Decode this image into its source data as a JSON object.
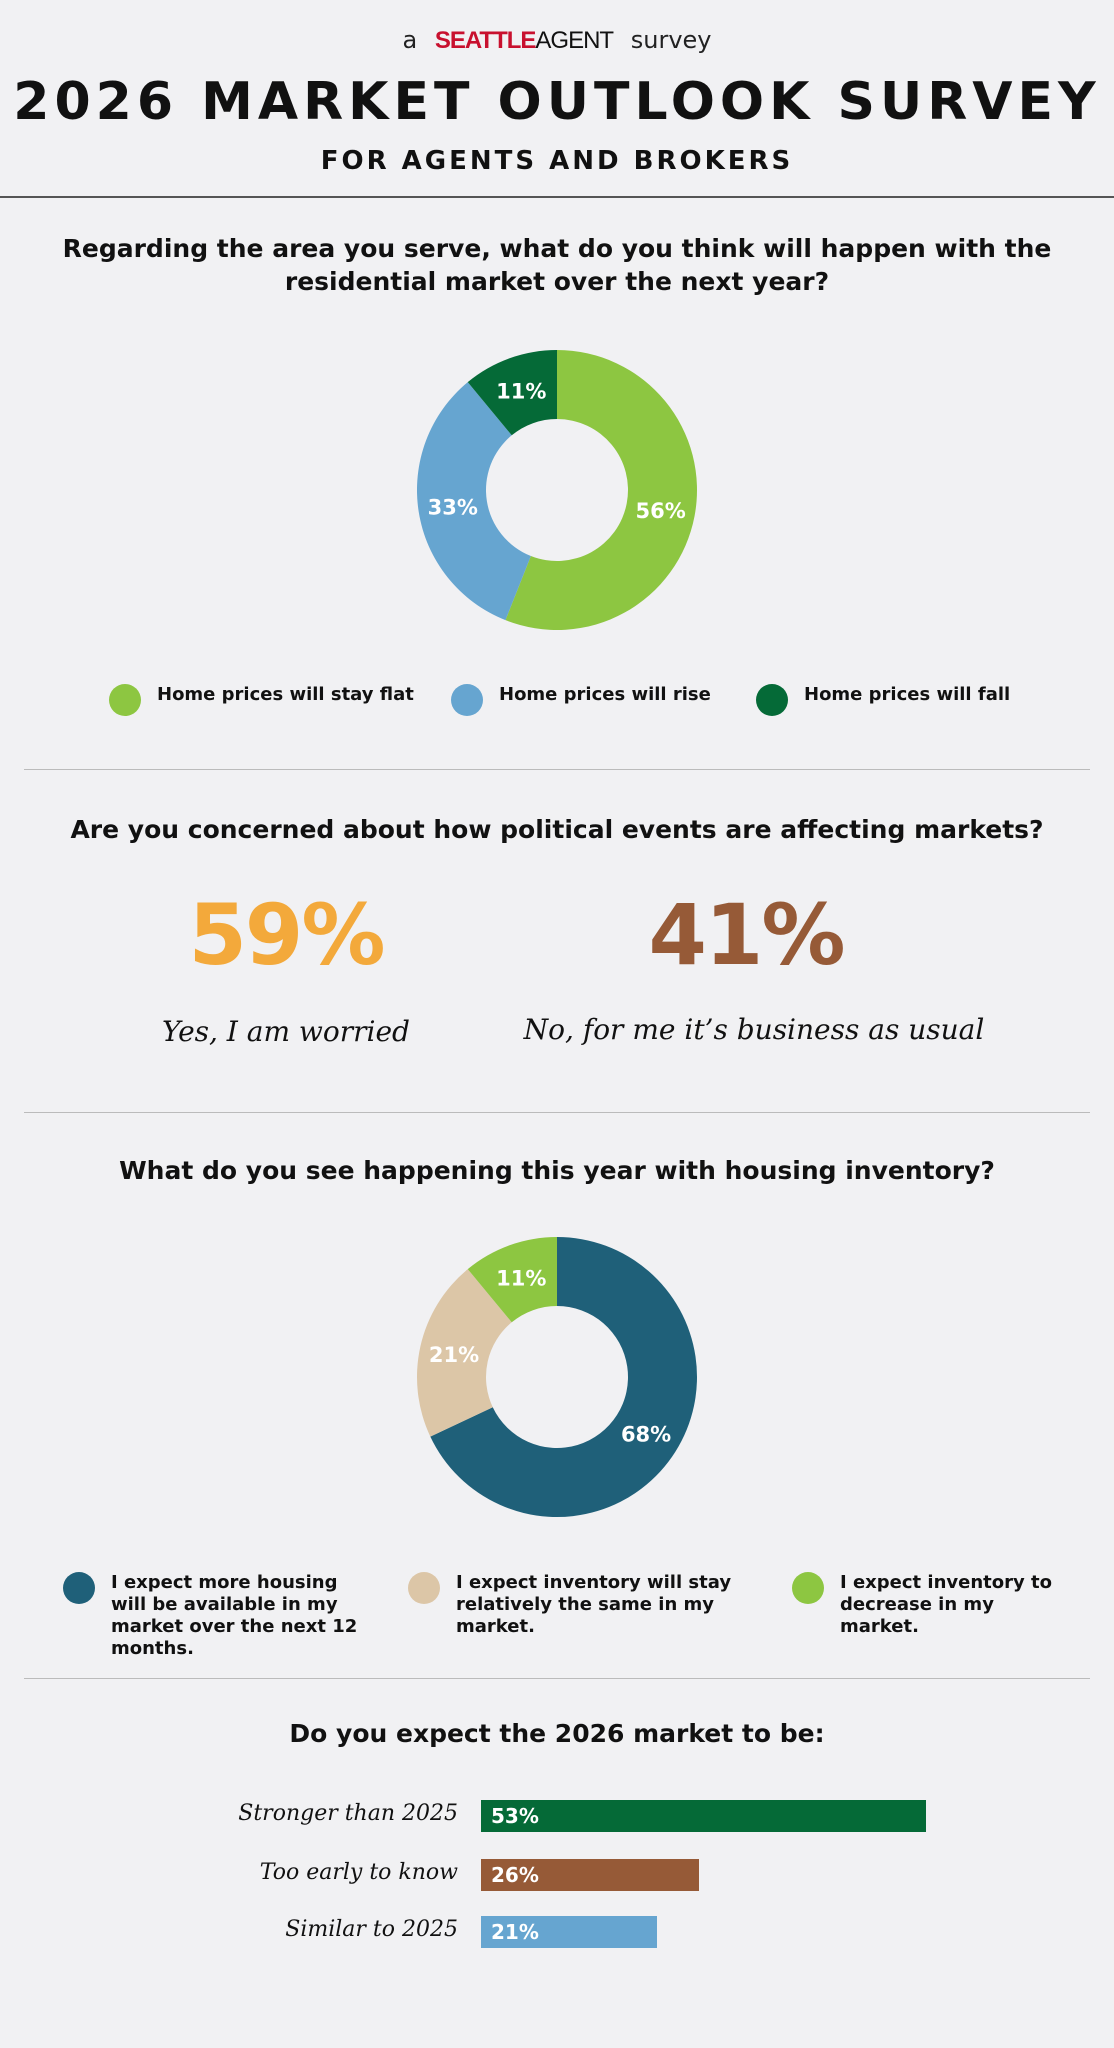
{
  "header": {
    "prefix": "a",
    "brand_main": "SEATTLE",
    "brand_accent": "AGENT",
    "suffix": "survey",
    "title": "2026 MARKET OUTLOOK SURVEY",
    "subtitle": "FOR AGENTS AND BROKERS"
  },
  "colors": {
    "brand_red": "#c8102e",
    "light_green": "#8dc641",
    "blue": "#66a5d0",
    "dark_green": "#056a37",
    "teal": "#1f6079",
    "tan": "#dcc6a7",
    "orange": "#f3a93b",
    "brown": "#965a37"
  },
  "section1": {
    "question": "Regarding the area you serve, what do you think will happen with the residential market over the next year?",
    "legend": [
      {
        "label": "Home prices will stay flat",
        "color": "#8dc641"
      },
      {
        "label": "Home prices will rise",
        "color": "#66a5d0"
      },
      {
        "label": "Home prices will fall",
        "color": "#056a37"
      }
    ]
  },
  "section2": {
    "question": "Are you concerned about how political events are affecting markets?",
    "yes_value": "59%",
    "yes_label": "Yes, I am worried",
    "no_value": "41%",
    "no_label": "No, for me it’s business as usual"
  },
  "section3": {
    "question": "What do you see happening this year with housing inventory?",
    "legend": [
      {
        "label": "I expect more housing will be available in my market over the next 12 months.",
        "color": "#1f6079"
      },
      {
        "label": "I expect inventory will stay relatively the same in my market.",
        "color": "#dcc6a7"
      },
      {
        "label": "I expect inventory to decrease in my market.",
        "color": "#8dc641"
      }
    ]
  },
  "section4": {
    "question": "Do you expect the 2026 market to be:"
  },
  "chart_data": [
    {
      "type": "pie",
      "categories": [
        "Home prices will stay flat",
        "Home prices will rise",
        "Home prices will fall"
      ],
      "values": [
        56,
        33,
        11
      ],
      "labels": [
        "56%",
        "33%",
        "11%"
      ],
      "colors": [
        "#8dc641",
        "#66a5d0",
        "#056a37"
      ],
      "legend_position": "bottom"
    },
    {
      "type": "pie",
      "categories": [
        "I expect more housing will be available in my market over the next 12 months.",
        "I expect inventory will stay relatively the same in my market.",
        "I expect inventory to decrease in my market."
      ],
      "values": [
        68,
        21,
        11
      ],
      "labels": [
        "68%",
        "21%",
        "11%"
      ],
      "colors": [
        "#1f6079",
        "#dcc6a7",
        "#8dc641"
      ],
      "legend_position": "bottom"
    },
    {
      "type": "bar",
      "orientation": "horizontal",
      "categories": [
        "Stronger than 2025",
        "Too early to know",
        "Similar to 2025"
      ],
      "values": [
        53,
        26,
        21
      ],
      "labels": [
        "53%",
        "26%",
        "21%"
      ],
      "colors": [
        "#056a37",
        "#965a37",
        "#66a5d0"
      ]
    }
  ]
}
